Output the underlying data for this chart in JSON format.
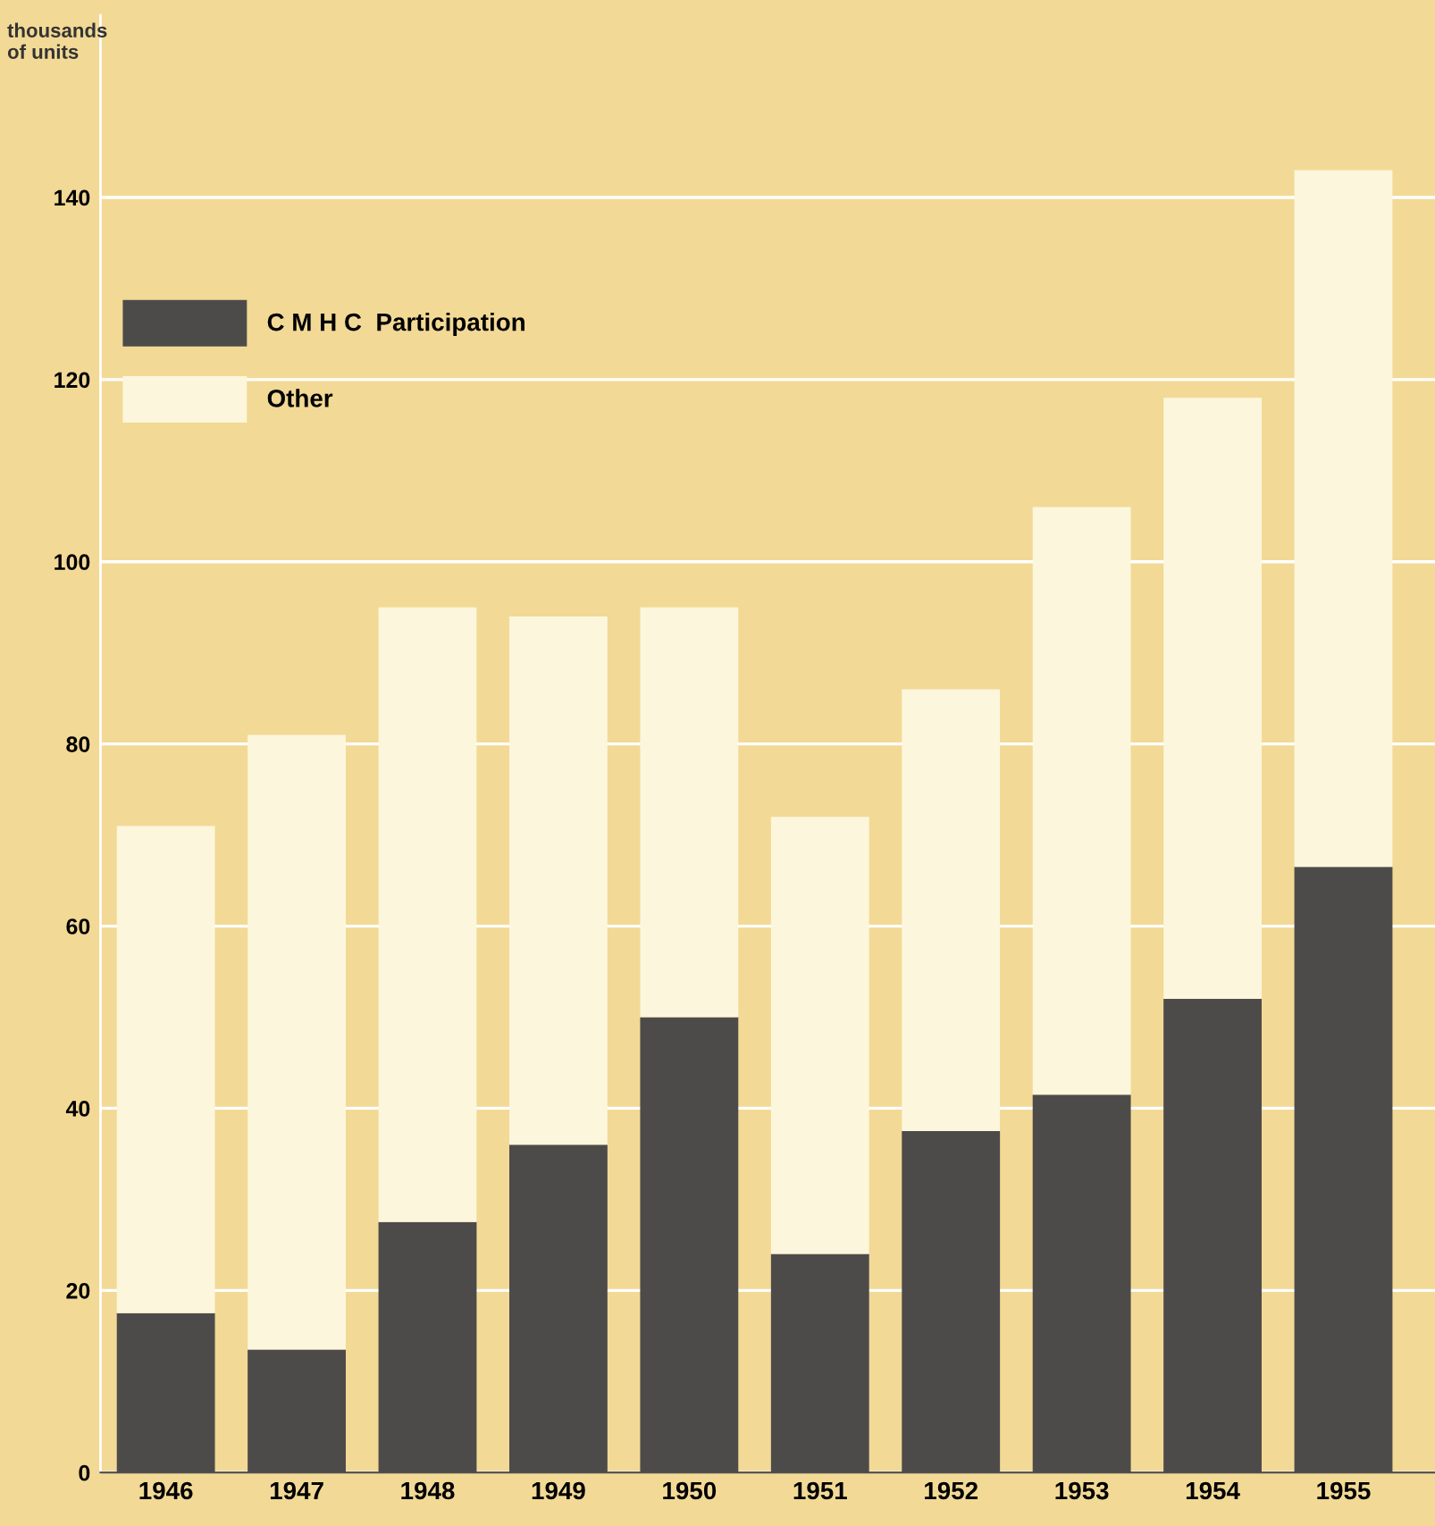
{
  "chart_data": {
    "type": "bar",
    "stacked": true,
    "ylabel": "thousands\nof units",
    "categories": [
      "1946",
      "1947",
      "1948",
      "1949",
      "1950",
      "1951",
      "1952",
      "1953",
      "1954",
      "1955"
    ],
    "series": [
      {
        "name": "C M H C  Participation",
        "color": "#4d4b4a",
        "values": [
          17.5,
          13.5,
          27.5,
          36,
          50,
          24,
          37.5,
          41.5,
          52,
          66.5
        ]
      },
      {
        "name": "Other",
        "color": "#fcf6dc",
        "values": [
          53.5,
          67.5,
          67.5,
          58,
          45,
          48,
          48.5,
          64.5,
          66,
          76.5
        ]
      }
    ],
    "ylim": [
      0,
      160
    ],
    "yticks": [
      0,
      20,
      40,
      60,
      80,
      100,
      120,
      140
    ],
    "grid": "y",
    "legend": "top left"
  }
}
